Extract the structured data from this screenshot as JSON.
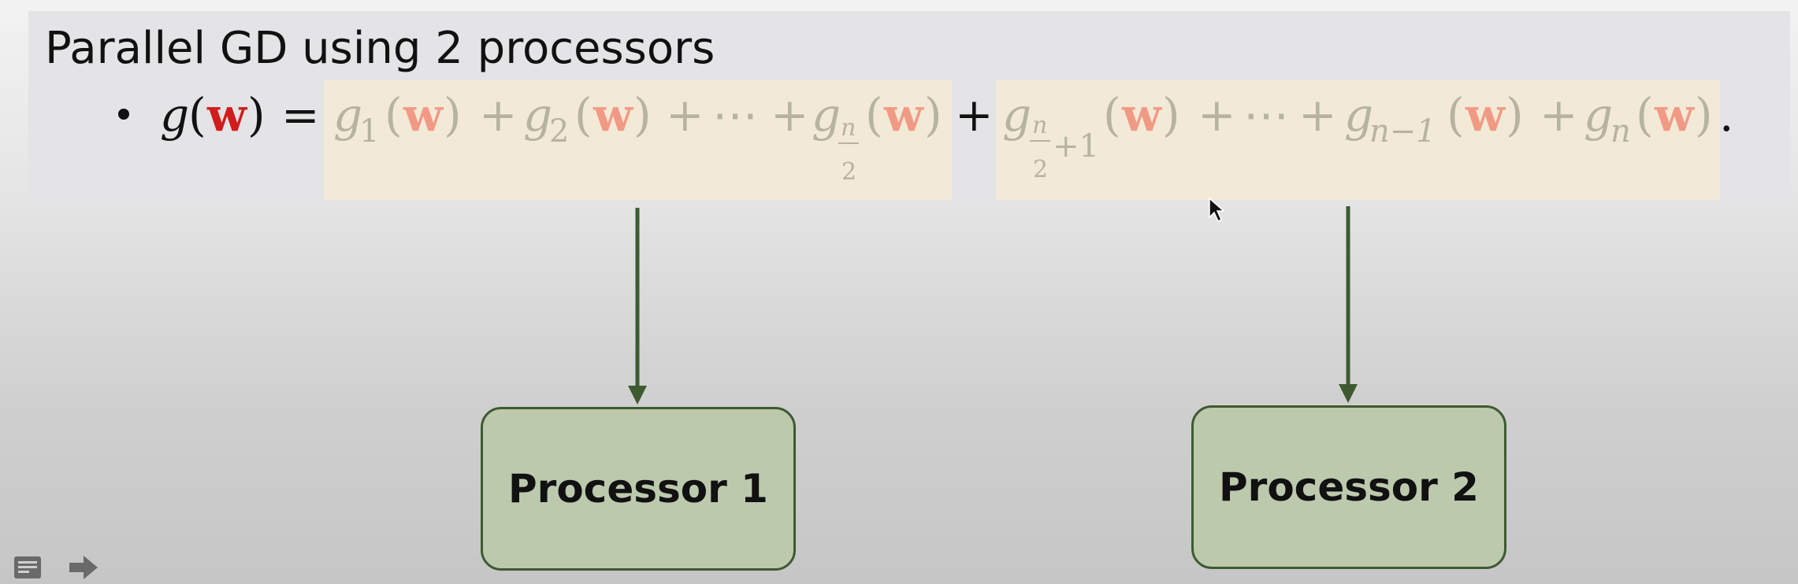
{
  "slide": {
    "title": "Parallel GD using 2 processors",
    "equation": {
      "lhs_g": "g",
      "lparen": "(",
      "w": "w",
      "rparen": ")",
      "equals": "=",
      "g": "g",
      "sub1": "1",
      "sub2": "2",
      "plus": "+",
      "dots": "⋯",
      "frac_num": "n",
      "frac_den": "2",
      "plus_one": "+1",
      "sub_n_minus_1": "n−1",
      "sub_n": "n",
      "period": "."
    },
    "processors": [
      "Processor 1",
      "Processor 2"
    ]
  },
  "colors": {
    "highlight": "#f2ead6",
    "w_emphasis": "#d01c1c",
    "w_faded": "#f09a86",
    "processor_fill": "#bcc9ad",
    "arrow": "#3e5a30"
  },
  "icons": {
    "notes": "notes-icon",
    "next": "next-arrow-icon"
  }
}
